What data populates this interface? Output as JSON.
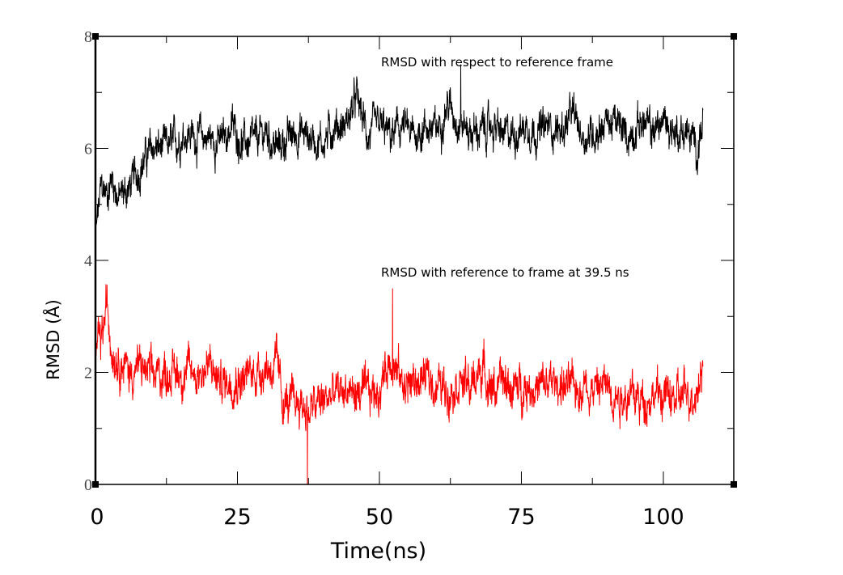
{
  "chart_data": {
    "type": "line",
    "title": "",
    "xlabel": "Time(ns)",
    "ylabel": "RMSD (Å)",
    "xlim": [
      0,
      112.4
    ],
    "ylim": [
      0,
      8
    ],
    "x_ticks": [
      0,
      25,
      50,
      75,
      100
    ],
    "x_minor_ticks": [
      12.5,
      37.5,
      62.5,
      87.5,
      112.5
    ],
    "y_ticks": [
      0,
      2,
      4,
      6,
      8
    ],
    "y_minor_ticks": [
      1,
      3,
      5,
      7
    ],
    "y_tick_labels": [
      "0",
      "2",
      "4",
      "6",
      "8"
    ],
    "x_tick_labels": [
      "0",
      "25",
      "50",
      "75",
      "100"
    ],
    "grid": false,
    "annotations": [
      {
        "text": "RMSD with respect to reference frame",
        "x": 50.5,
        "y": 7.55,
        "series": 0
      },
      {
        "text": "RMSD with reference to frame at 39.5 ns",
        "x": 50.5,
        "y": 3.78,
        "series": 1
      }
    ],
    "series": [
      {
        "name": "RMSD with respect to reference frame",
        "color": "#000000",
        "noise_amplitude": 0.35,
        "x": [
          0,
          1,
          2,
          3,
          4,
          6,
          8,
          10,
          12,
          14,
          16,
          18,
          20,
          22,
          24,
          26,
          28,
          30,
          32,
          34,
          36,
          38,
          40,
          42,
          44,
          46,
          48,
          50,
          52,
          54,
          56,
          58,
          60,
          62,
          64,
          66,
          68,
          70,
          72,
          74,
          76,
          78,
          80,
          82,
          84,
          86,
          88,
          90,
          92,
          94,
          96,
          98,
          100,
          102,
          104,
          106,
          107
        ],
        "y": [
          4.4,
          5.3,
          5.2,
          5.5,
          5.1,
          5.3,
          5.7,
          6.0,
          6.0,
          6.1,
          6.3,
          6.2,
          6.2,
          6.1,
          6.4,
          6.1,
          6.1,
          6.3,
          6.0,
          6.2,
          6.3,
          6.2,
          6.1,
          6.4,
          6.4,
          6.9,
          6.2,
          6.4,
          6.2,
          6.4,
          6.2,
          6.4,
          6.3,
          6.8,
          6.5,
          6.3,
          6.3,
          6.4,
          6.2,
          6.3,
          6.4,
          6.3,
          6.4,
          6.3,
          6.6,
          6.2,
          6.3,
          6.5,
          6.4,
          6.2,
          6.5,
          6.3,
          6.5,
          6.3,
          6.3,
          6.0,
          6.5
        ]
      },
      {
        "name": "RMSD with reference to frame at 39.5 ns",
        "color": "#ff0000",
        "noise_amplitude": 0.4,
        "x": [
          0,
          1,
          2,
          3,
          4,
          6,
          8,
          10,
          12,
          14,
          16,
          18,
          20,
          22,
          24,
          26,
          28,
          30,
          32,
          33,
          34,
          36,
          37.5,
          40,
          42,
          44,
          46,
          48,
          50,
          52,
          54,
          56,
          58,
          60,
          62,
          64,
          66,
          68,
          70,
          72,
          74,
          76,
          78,
          80,
          82,
          84,
          86,
          88,
          90,
          92,
          94,
          96,
          98,
          100,
          102,
          104,
          106,
          107
        ],
        "y": [
          2.4,
          2.5,
          3.2,
          2.4,
          2.3,
          2.0,
          2.1,
          1.9,
          2.0,
          2.0,
          2.0,
          2.0,
          2.1,
          1.8,
          1.9,
          1.9,
          2.0,
          2.1,
          2.1,
          1.5,
          1.4,
          1.5,
          1.3,
          1.5,
          1.6,
          1.7,
          1.6,
          1.6,
          1.7,
          2.3,
          1.8,
          1.8,
          1.9,
          1.8,
          1.7,
          1.9,
          1.7,
          2.1,
          1.7,
          1.8,
          1.7,
          1.8,
          1.7,
          1.8,
          1.8,
          1.7,
          1.8,
          1.7,
          1.8,
          1.6,
          1.6,
          1.5,
          1.6,
          1.6,
          1.5,
          1.6,
          1.7,
          2.3
        ]
      }
    ],
    "spikes": [
      {
        "series": 1,
        "x": 37.3,
        "y": 0.0
      },
      {
        "series": 0,
        "x": 64.3,
        "y": 7.5
      },
      {
        "series": 1,
        "x": 52.3,
        "y": 3.5
      }
    ],
    "legend": "none"
  }
}
